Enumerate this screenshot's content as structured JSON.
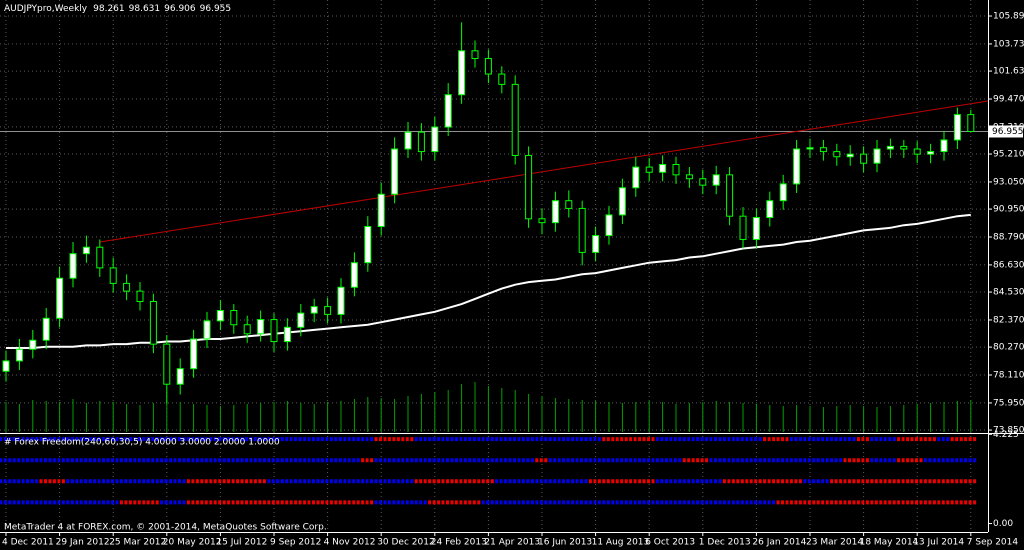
{
  "chart_data": [
    {
      "type": "candlestick",
      "title": "AUDJPYpro,Weekly",
      "categories": [
        "4 Dec 2011",
        null,
        null,
        null,
        "29 Jan 2012",
        null,
        null,
        null,
        "25 Mar 2012",
        null,
        null,
        null,
        "20 May 2012",
        null,
        null,
        null,
        "15 Jul 2012",
        null,
        null,
        null,
        "9 Sep 2012",
        null,
        null,
        null,
        "4 Nov 2012",
        null,
        null,
        null,
        "30 Dec 2012",
        null,
        null,
        null,
        "24 Feb 2013",
        null,
        null,
        null,
        "21 Apr 2013",
        null,
        null,
        null,
        "16 Jun 2013",
        null,
        null,
        null,
        "11 Aug 2013",
        null,
        null,
        null,
        "6 Oct 2013",
        null,
        null,
        null,
        "1 Dec 2013",
        null,
        null,
        null,
        "26 Jan 2014",
        null,
        null,
        null,
        "23 Mar 2014",
        null,
        null,
        null,
        "18 May 2014",
        null,
        null,
        null,
        "13 Jul 2014",
        null,
        null,
        null,
        "7 Sep 2014"
      ],
      "open": [
        78.4,
        79.2,
        80.1,
        80.8,
        82.5,
        85.6,
        87.5,
        88.0,
        86.4,
        85.2,
        84.6,
        83.8,
        80.5,
        77.4,
        78.6,
        80.9,
        82.3,
        83.1,
        82.0,
        81.3,
        82.4,
        80.7,
        81.8,
        82.9,
        83.4,
        82.8,
        84.9,
        86.8,
        89.6,
        92.1,
        95.6,
        96.9,
        95.4,
        97.3,
        99.8,
        103.2,
        102.6,
        101.4,
        100.6,
        95.1,
        90.2,
        89.9,
        91.6,
        91.0,
        87.6,
        88.9,
        90.5,
        92.6,
        94.2,
        93.8,
        94.4,
        93.6,
        93.3,
        92.8,
        93.6,
        90.4,
        88.6,
        90.3,
        91.6,
        92.9,
        95.6,
        95.7,
        95.4,
        95.0,
        95.2,
        94.5,
        95.6,
        95.8,
        95.6,
        95.2,
        95.4,
        96.3,
        98.261
      ],
      "high": [
        80.0,
        80.9,
        81.6,
        83.3,
        86.5,
        88.4,
        88.9,
        88.6,
        87.2,
        85.9,
        85.3,
        84.4,
        81.2,
        79.4,
        81.6,
        83.0,
        83.9,
        83.6,
        82.7,
        83.1,
        82.9,
        82.5,
        83.6,
        84.0,
        84.1,
        85.6,
        87.6,
        90.4,
        93.0,
        96.5,
        97.7,
        97.6,
        98.1,
        100.7,
        105.4,
        104.0,
        103.3,
        102.0,
        101.3,
        95.8,
        91.0,
        92.3,
        92.4,
        91.6,
        89.6,
        91.2,
        93.3,
        95.0,
        94.9,
        95.1,
        95.0,
        94.2,
        94.0,
        94.3,
        94.2,
        91.1,
        91.0,
        92.3,
        93.6,
        96.3,
        96.4,
        96.3,
        96.0,
        95.9,
        95.8,
        96.3,
        96.4,
        96.3,
        96.2,
        96.0,
        97.0,
        98.8,
        98.631
      ],
      "low": [
        77.6,
        78.5,
        79.4,
        80.1,
        81.8,
        84.9,
        86.8,
        85.7,
        84.5,
        83.9,
        83.1,
        79.8,
        75.9,
        76.6,
        77.9,
        80.2,
        81.6,
        81.3,
        80.6,
        80.7,
        79.9,
        80.0,
        81.1,
        82.2,
        82.1,
        82.1,
        84.2,
        86.1,
        88.9,
        91.4,
        94.9,
        94.7,
        94.7,
        96.6,
        99.1,
        101.9,
        100.7,
        99.9,
        94.4,
        89.5,
        89.0,
        89.2,
        90.3,
        86.6,
        86.9,
        88.2,
        89.8,
        91.9,
        93.1,
        93.1,
        92.9,
        92.6,
        92.1,
        92.1,
        89.7,
        87.9,
        87.9,
        89.6,
        90.9,
        92.2,
        94.9,
        94.7,
        94.3,
        94.3,
        93.8,
        93.8,
        94.9,
        94.9,
        94.5,
        94.5,
        94.7,
        95.6,
        96.906
      ],
      "close": [
        79.2,
        80.1,
        80.8,
        82.5,
        85.6,
        87.5,
        88.0,
        86.4,
        85.2,
        84.6,
        83.8,
        80.5,
        77.4,
        78.6,
        80.9,
        82.3,
        83.1,
        82.0,
        81.3,
        82.4,
        80.7,
        81.8,
        82.9,
        83.4,
        82.8,
        84.9,
        86.8,
        89.6,
        92.1,
        95.6,
        96.9,
        95.4,
        97.3,
        99.8,
        103.2,
        102.6,
        101.4,
        100.6,
        95.1,
        90.2,
        89.9,
        91.6,
        91.0,
        87.6,
        88.9,
        90.5,
        92.6,
        94.2,
        93.8,
        94.4,
        93.6,
        93.3,
        92.8,
        93.6,
        90.4,
        88.6,
        90.3,
        91.6,
        92.9,
        95.6,
        95.7,
        95.4,
        95.0,
        95.2,
        94.5,
        95.6,
        95.8,
        95.6,
        95.2,
        95.4,
        96.3,
        98.261,
        96.955
      ],
      "volume": [
        30,
        28,
        32,
        31,
        30,
        33,
        29,
        31,
        30,
        28,
        27,
        29,
        31,
        30,
        28,
        27,
        26,
        27,
        28,
        29,
        30,
        31,
        29,
        28,
        30,
        31,
        33,
        35,
        34,
        33,
        36,
        38,
        40,
        42,
        48,
        50,
        46,
        44,
        42,
        38,
        36,
        34,
        33,
        32,
        31,
        30,
        29,
        30,
        31,
        30,
        28,
        29,
        30,
        31,
        30,
        29,
        28,
        27,
        26,
        27,
        26,
        25,
        26,
        27,
        26,
        25,
        26,
        27,
        28,
        29,
        30,
        31,
        32
      ],
      "moving_average": [
        80.2,
        80.2,
        80.2,
        80.3,
        80.3,
        80.3,
        80.4,
        80.4,
        80.5,
        80.5,
        80.6,
        80.6,
        80.7,
        80.7,
        80.8,
        80.9,
        80.9,
        81.0,
        81.1,
        81.2,
        81.3,
        81.4,
        81.5,
        81.6,
        81.7,
        81.8,
        81.9,
        82.0,
        82.2,
        82.4,
        82.6,
        82.8,
        83.0,
        83.3,
        83.6,
        84.0,
        84.4,
        84.8,
        85.1,
        85.3,
        85.4,
        85.5,
        85.7,
        85.9,
        86.0,
        86.2,
        86.4,
        86.6,
        86.8,
        86.9,
        87.0,
        87.2,
        87.3,
        87.5,
        87.7,
        87.9,
        88.0,
        88.1,
        88.2,
        88.4,
        88.5,
        88.7,
        88.9,
        89.1,
        89.3,
        89.4,
        89.5,
        89.7,
        89.8,
        90.0,
        90.2,
        90.4,
        90.5
      ],
      "trendline": {
        "index": [
          7,
          72
        ],
        "values": [
          88.4,
          99.1
        ]
      },
      "ylim": [
        73.7,
        107.13
      ],
      "yticks": [
        {
          "value": 105.89,
          "label": "105.890"
        },
        {
          "value": 103.73,
          "label": "103.730"
        },
        {
          "value": 101.63,
          "label": "101.630"
        },
        {
          "value": 99.47,
          "label": "99.470"
        },
        {
          "value": 97.31,
          "label": "97.310"
        },
        {
          "value": 95.21,
          "label": "95.210"
        },
        {
          "value": 93.05,
          "label": "93.050"
        },
        {
          "value": 90.95,
          "label": "90.950"
        },
        {
          "value": 88.79,
          "label": "88.790"
        },
        {
          "value": 86.63,
          "label": "86.630"
        },
        {
          "value": 84.53,
          "label": "84.530"
        },
        {
          "value": 82.37,
          "label": "82.370"
        },
        {
          "value": 80.27,
          "label": "80.270"
        },
        {
          "value": 78.11,
          "label": "78.110"
        },
        {
          "value": 75.95,
          "label": "75.950"
        },
        {
          "value": 73.85,
          "label": "73.850"
        }
      ],
      "grid": true,
      "candle_color": "#00ff00",
      "up_fill": "#ffffff",
      "down_fill": "#000000",
      "ma_color": "#ffffff",
      "trendline_color": "#c00000",
      "volume_color": "#00a000"
    },
    {
      "type": "dots",
      "title": "# Forex Freedom(240,60,30,5) 4.0000 3.0000 2.0000 1.0000",
      "state_colors": [
        "#0000ee",
        "#ee0000"
      ],
      "ylim": [
        -0.4,
        4.24
      ],
      "yticks": [
        {
          "value": 4.225,
          "label": "4.225"
        },
        {
          "value": 0,
          "label": "0.00"
        }
      ],
      "series": [
        {
          "level": 4,
          "states": [
            0,
            0,
            0,
            0,
            0,
            0,
            0,
            0,
            0,
            0,
            0,
            0,
            0,
            0,
            0,
            0,
            0,
            0,
            0,
            0,
            0,
            0,
            0,
            0,
            0,
            0,
            0,
            0,
            1,
            1,
            1,
            0,
            0,
            0,
            0,
            0,
            0,
            0,
            0,
            0,
            0,
            0,
            0,
            0,
            0,
            1,
            1,
            1,
            1,
            0,
            0,
            0,
            0,
            0,
            0,
            0,
            0,
            1,
            1,
            0,
            0,
            0,
            0,
            0,
            1,
            0,
            0,
            1,
            1,
            1,
            0,
            1,
            1
          ]
        },
        {
          "level": 3,
          "states": [
            0,
            0,
            0,
            0,
            0,
            0,
            0,
            0,
            0,
            0,
            0,
            0,
            0,
            0,
            0,
            0,
            0,
            0,
            0,
            0,
            0,
            0,
            0,
            0,
            0,
            0,
            0,
            1,
            0,
            0,
            0,
            0,
            0,
            0,
            0,
            0,
            0,
            0,
            0,
            0,
            1,
            0,
            0,
            0,
            0,
            0,
            0,
            0,
            0,
            0,
            0,
            1,
            1,
            0,
            0,
            0,
            0,
            0,
            0,
            0,
            0,
            0,
            0,
            1,
            1,
            0,
            0,
            1,
            1,
            0,
            0,
            0,
            0
          ]
        },
        {
          "level": 2,
          "states": [
            0,
            0,
            0,
            1,
            1,
            0,
            0,
            0,
            0,
            0,
            0,
            0,
            0,
            0,
            1,
            1,
            1,
            1,
            1,
            1,
            0,
            0,
            0,
            0,
            0,
            0,
            0,
            0,
            0,
            0,
            0,
            1,
            1,
            1,
            1,
            1,
            1,
            0,
            0,
            0,
            0,
            0,
            0,
            0,
            1,
            1,
            1,
            1,
            1,
            0,
            0,
            0,
            0,
            0,
            1,
            1,
            1,
            1,
            1,
            1,
            0,
            0,
            1,
            1,
            1,
            1,
            1,
            1,
            1,
            1,
            1,
            1,
            1
          ]
        },
        {
          "level": 1,
          "states": [
            0,
            0,
            0,
            0,
            0,
            0,
            0,
            0,
            0,
            1,
            1,
            1,
            0,
            0,
            1,
            1,
            1,
            1,
            1,
            1,
            1,
            1,
            1,
            1,
            1,
            1,
            1,
            1,
            0,
            0,
            0,
            0,
            1,
            1,
            1,
            1,
            0,
            0,
            0,
            0,
            0,
            0,
            0,
            0,
            0,
            0,
            0,
            0,
            0,
            0,
            0,
            0,
            0,
            0,
            0,
            0,
            0,
            0,
            1,
            1,
            1,
            1,
            1,
            1,
            1,
            1,
            1,
            1,
            1,
            1,
            1,
            1,
            1
          ]
        }
      ]
    }
  ],
  "footer": "MetaTrader 4 at FOREX.com, © 2001-2014, MetaQuotes Software Corp."
}
